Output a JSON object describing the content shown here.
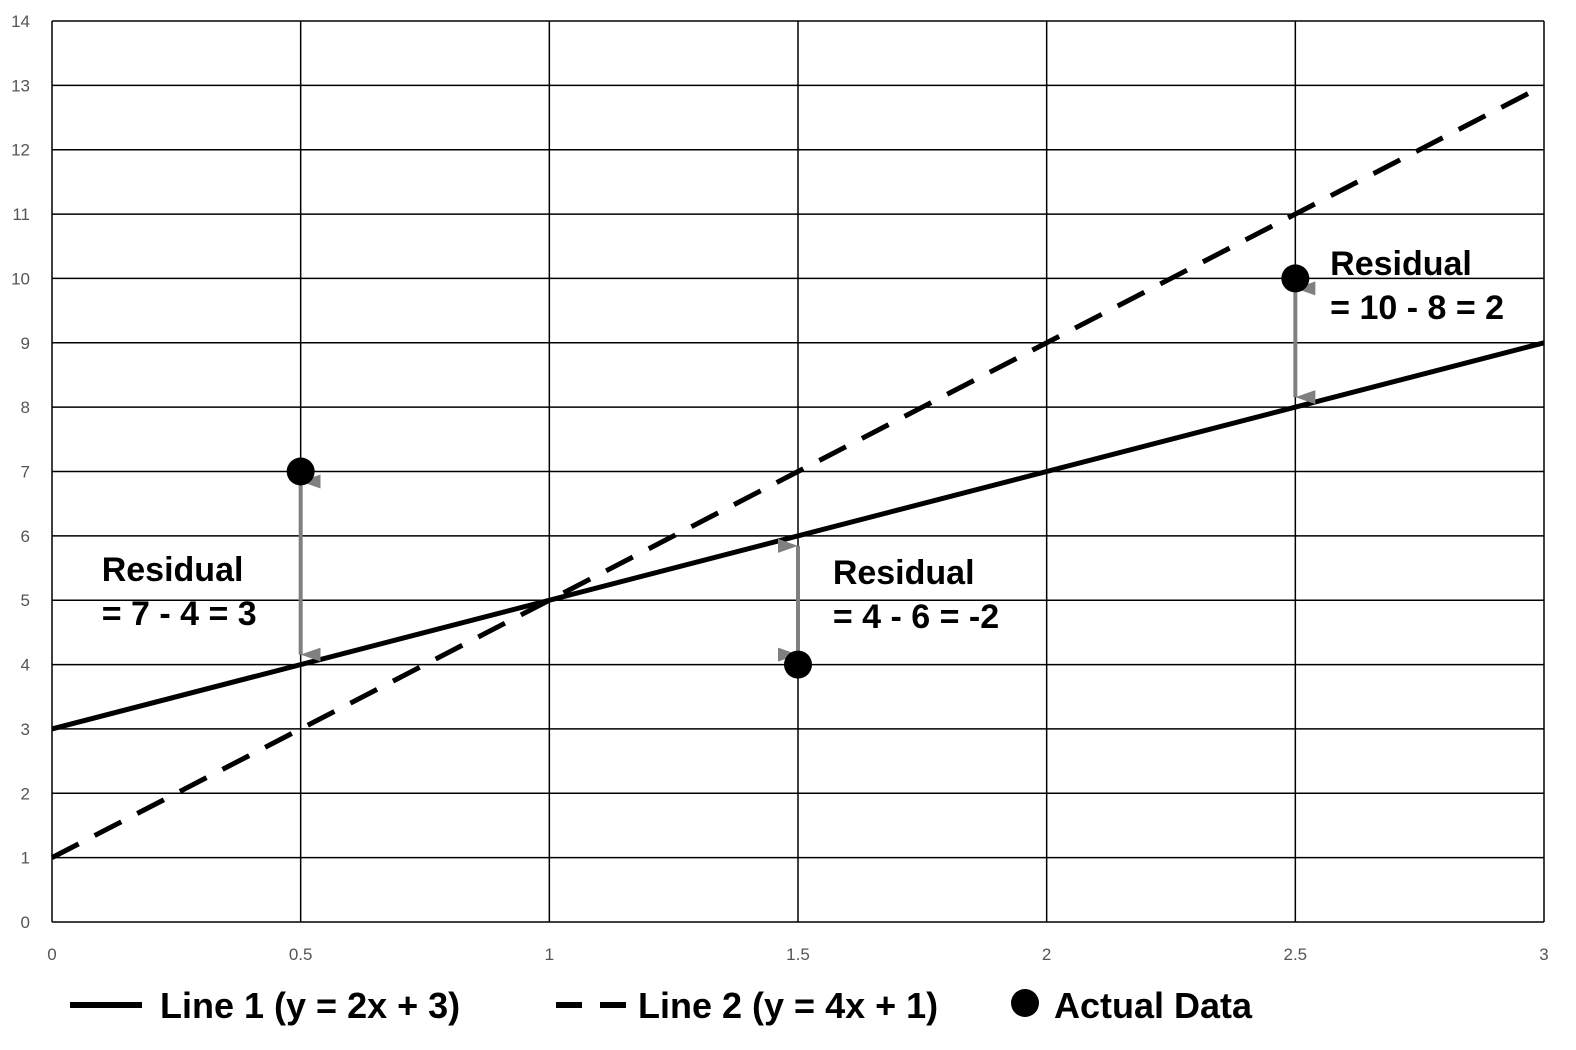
{
  "chart_data": {
    "type": "line",
    "title": "",
    "xlabel": "",
    "ylabel": "",
    "xlim": [
      0,
      3
    ],
    "ylim": [
      0,
      14
    ],
    "grid": true,
    "x_ticks": [
      0,
      0.5,
      1,
      1.5,
      2,
      2.5,
      3
    ],
    "y_ticks": [
      0,
      1,
      2,
      3,
      4,
      5,
      6,
      7,
      8,
      9,
      10,
      11,
      12,
      13,
      14
    ],
    "legend_position": "bottom",
    "series": [
      {
        "name": "Line 1 (y = 2x + 3)",
        "style": "solid",
        "color": "#000000",
        "x": [
          0,
          3
        ],
        "y": [
          3,
          9
        ]
      },
      {
        "name": "Line 2 (y = 4x + 1)",
        "style": "dashed",
        "color": "#000000",
        "x": [
          0,
          3
        ],
        "y": [
          1,
          13
        ]
      },
      {
        "name": "Actual Data",
        "style": "scatter",
        "color": "#000000",
        "x": [
          0.5,
          1.5,
          2.5
        ],
        "y": [
          7,
          4,
          10
        ]
      }
    ],
    "residuals": [
      {
        "x": 0.5,
        "from": 4,
        "to": 7,
        "label_lines": [
          "Residual",
          "= 7 - 4 = 3"
        ],
        "label_x": 0.1,
        "label_y": 5.3
      },
      {
        "x": 1.5,
        "from": 6,
        "to": 4,
        "label_lines": [
          "Residual",
          "= 4 - 6 = -2"
        ],
        "label_x": 1.57,
        "label_y": 5.25
      },
      {
        "x": 2.5,
        "from": 8,
        "to": 10,
        "label_lines": [
          "Residual",
          "= 10 - 8 = 2"
        ],
        "label_x": 2.57,
        "label_y": 10.05
      }
    ],
    "arrow_color": "#808080"
  }
}
